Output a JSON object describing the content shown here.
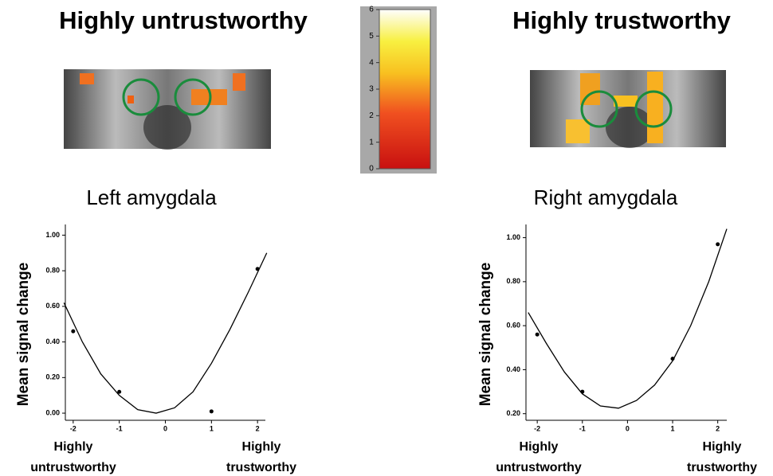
{
  "panels": [
    {
      "title": "Highly untrustworthy"
    },
    {
      "title": "Highly trustworthy"
    }
  ],
  "colorbar": {
    "ticks": [
      0,
      1,
      2,
      3,
      4,
      5,
      6
    ]
  },
  "chart_data": [
    {
      "type": "scatter",
      "title": "Left amygdala",
      "y_label": "Mean signal change",
      "annotations": [
        "Highly untrustworthy",
        "Highly trustworthy"
      ],
      "x": [
        -2,
        -1,
        1,
        2
      ],
      "values": [
        0.46,
        0.12,
        0.01,
        0.81
      ],
      "fit": {
        "x": [
          -2.2,
          -1.8,
          -1.4,
          -1.0,
          -0.6,
          -0.2,
          0.2,
          0.6,
          1.0,
          1.4,
          1.8,
          2.2
        ],
        "values": [
          0.62,
          0.4,
          0.22,
          0.1,
          0.02,
          0.0,
          0.03,
          0.12,
          0.28,
          0.47,
          0.68,
          0.9
        ]
      },
      "xlim": [
        -2.17,
        2.17
      ],
      "xticks": [
        -2,
        -1,
        0,
        1,
        2
      ],
      "ylim": [
        -0.04,
        1.06
      ],
      "yticks": [
        {
          "value": 0,
          "label": "0.00"
        },
        {
          "value": 0.2,
          "label": "0.20"
        },
        {
          "value": 0.4,
          "label": "0.40"
        },
        {
          "value": 0.6,
          "label": "0.60"
        },
        {
          "value": 0.8,
          "label": "0.80"
        },
        {
          "value": 1,
          "label": "1.00"
        }
      ]
    },
    {
      "type": "scatter",
      "title": "Right amygdala",
      "y_label": "Mean signal change",
      "annotations": [
        "Highly untrustworthy",
        "Highly trustworthy"
      ],
      "x": [
        -2,
        -1,
        1,
        2
      ],
      "values": [
        0.56,
        0.3,
        0.45,
        0.97
      ],
      "fit": {
        "x": [
          -2.2,
          -1.8,
          -1.4,
          -1.0,
          -0.6,
          -0.2,
          0.2,
          0.6,
          1.0,
          1.4,
          1.8,
          2.2
        ],
        "values": [
          0.66,
          0.52,
          0.39,
          0.29,
          0.235,
          0.225,
          0.26,
          0.33,
          0.44,
          0.6,
          0.8,
          1.04
        ]
      },
      "xlim": [
        -2.25,
        2.2
      ],
      "xticks": [
        -2,
        -1,
        0,
        1,
        2
      ],
      "ylim": [
        0.17,
        1.06
      ],
      "yticks": [
        {
          "value": 0.2,
          "label": "0.20"
        },
        {
          "value": 0.4,
          "label": "0.40"
        },
        {
          "value": 0.6,
          "label": "0.60"
        },
        {
          "value": 0.8,
          "label": "0.80"
        },
        {
          "value": 1,
          "label": "1.00"
        }
      ]
    }
  ]
}
